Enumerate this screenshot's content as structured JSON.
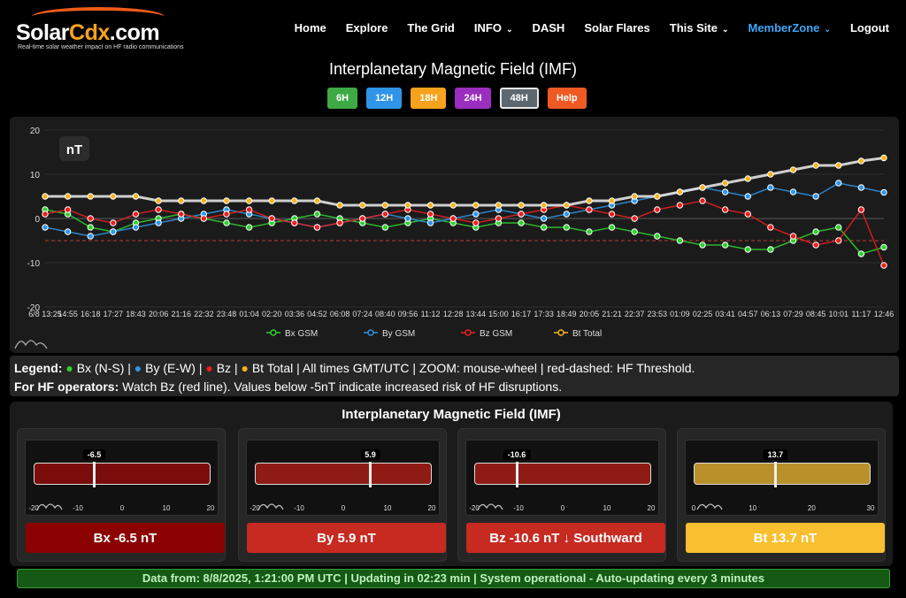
{
  "nav": {
    "logo": {
      "name_main": "Solar",
      "name_hl": "Cdx",
      "name_tail": ".com",
      "tagline": "Real-time solar weather impact on HF radio communications"
    },
    "items": [
      {
        "label": "Home",
        "dropdown": false
      },
      {
        "label": "Explore",
        "dropdown": false
      },
      {
        "label": "The Grid",
        "dropdown": false
      },
      {
        "label": "INFO",
        "dropdown": true
      },
      {
        "label": "DASH",
        "dropdown": false
      },
      {
        "label": "Solar Flares",
        "dropdown": false
      },
      {
        "label": "This Site",
        "dropdown": true
      },
      {
        "label": "MemberZone",
        "dropdown": true,
        "active": true
      },
      {
        "label": "Logout",
        "dropdown": false
      }
    ],
    "chevron": "⌄"
  },
  "page_title": "Interplanetary Magnetic Field (IMF)",
  "ranges": [
    {
      "label": "6H",
      "color": "#3daa46"
    },
    {
      "label": "12H",
      "color": "#2f95e8"
    },
    {
      "label": "18H",
      "color": "#f7a21c"
    },
    {
      "label": "24H",
      "color": "#9b2dbf"
    },
    {
      "label": "48H",
      "color": "#5c6770",
      "selected": true
    },
    {
      "label": "Help",
      "color": "#ef5a22"
    }
  ],
  "chart_data": {
    "type": "scatter",
    "unit_label": "nT",
    "ylim": [
      -20,
      20
    ],
    "yticks": [
      20,
      10,
      0,
      -10,
      -20
    ],
    "threshold": -5,
    "grid": true,
    "legend_position": "bottom",
    "x_tick_labels": [
      "6/8 13:25",
      "14:55",
      "16:18",
      "17:27",
      "18:43",
      "20:06",
      "21:16",
      "22:32",
      "23:48",
      "01:04",
      "02:20",
      "03:36",
      "04:52",
      "06:08",
      "07:24",
      "08:40",
      "09:56",
      "11:12",
      "12:28",
      "13:44",
      "15:00",
      "16:17",
      "17:33",
      "18:49",
      "20:05",
      "21:21",
      "22:37",
      "23:53",
      "01:09",
      "02:25",
      "03:41",
      "04:57",
      "06:13",
      "07:29",
      "08:45",
      "10:01",
      "11:17",
      "12:46"
    ],
    "x_labels_note": "time axis 6/8 13:25 to 12:46 (next day)",
    "series": [
      {
        "name": "Bx GSM",
        "color": "#2fd12f",
        "values": [
          2,
          1,
          -2,
          -3,
          -1,
          0,
          1,
          0,
          -1,
          -2,
          -1,
          0,
          1,
          0,
          -1,
          -2,
          -1,
          0,
          -1,
          -2,
          -1,
          -1,
          -2,
          -2,
          -3,
          -2,
          -3,
          -4,
          -5,
          -6,
          -6,
          -7,
          -7,
          -5,
          -3,
          -2,
          -8,
          -6.5
        ]
      },
      {
        "name": "By GSM",
        "color": "#2f95e8",
        "values": [
          -2,
          -3,
          -4,
          -3,
          -2,
          -1,
          0,
          1,
          2,
          1,
          0,
          -1,
          -2,
          -1,
          0,
          1,
          0,
          -1,
          0,
          1,
          2,
          1,
          0,
          1,
          2,
          3,
          4,
          5,
          6,
          7,
          6,
          5,
          7,
          6,
          5,
          8,
          7,
          5.9
        ]
      },
      {
        "name": "Bz GSM",
        "color": "#ec1f1f",
        "values": [
          1,
          2,
          0,
          -1,
          1,
          2,
          1,
          0,
          1,
          2,
          0,
          -1,
          -2,
          -1,
          0,
          1,
          2,
          1,
          0,
          -1,
          0,
          1,
          2,
          3,
          2,
          1,
          0,
          2,
          3,
          4,
          2,
          1,
          -2,
          -4,
          -6,
          -5,
          2,
          -10.6
        ]
      },
      {
        "name": "Bt Total",
        "color": "#f7b21c",
        "values": [
          5,
          5,
          5,
          5,
          5,
          4,
          4,
          4,
          4,
          4,
          4,
          4,
          4,
          3,
          3,
          3,
          3,
          3,
          3,
          3,
          3,
          3,
          3,
          3,
          4,
          4,
          5,
          5,
          6,
          7,
          8,
          9,
          10,
          11,
          12,
          12,
          13,
          13.7
        ]
      }
    ]
  },
  "legend_text": {
    "legend_label": "Legend:",
    "bx": "Bx (N-S)",
    "by": "By (E-W)",
    "bz": "Bz",
    "bt": "Bt Total",
    "sep": "|",
    "tail": "All times GMT/UTC | ZOOM: mouse-wheel | red-dashed: HF Threshold.",
    "hf_label": "For HF operators:",
    "hf_text": "Watch Bz (red line). Values below -5nT indicate increased risk of HF disruptions."
  },
  "gauges": {
    "title": "Interplanetary Magnetic Field (IMF)",
    "cards": [
      {
        "id": "bx",
        "value": -6.5,
        "value_label": "-6.5",
        "min": -20,
        "max": 20,
        "ticks": [
          "-20",
          "-10",
          "0",
          "10",
          "20"
        ],
        "bar_color": "#7a0c0c",
        "button_label": "Bx -6.5 nT",
        "button_color": "#8b0000"
      },
      {
        "id": "by",
        "value": 5.9,
        "value_label": "5.9",
        "min": -20,
        "max": 20,
        "ticks": [
          "-20",
          "-10",
          "0",
          "10",
          "20"
        ],
        "bar_color": "#8e1c14",
        "button_label": "By 5.9 nT",
        "button_color": "#c62a20"
      },
      {
        "id": "bz",
        "value": -10.6,
        "value_label": "-10.6",
        "min": -20,
        "max": 20,
        "ticks": [
          "-20",
          "-10",
          "0",
          "10",
          "20"
        ],
        "bar_color": "#8e1c14",
        "button_label": "Bz -10.6 nT ↓ Southward",
        "button_color": "#c62a20"
      },
      {
        "id": "bt",
        "value": 13.7,
        "value_label": "13.7",
        "min": 0,
        "max": 30,
        "ticks": [
          "0",
          "10",
          "20",
          "30"
        ],
        "bar_color": "#b8902a",
        "button_label": "Bt 13.7 nT",
        "button_color": "#f8c030"
      }
    ]
  },
  "status_text": "Data from: 8/8/2025, 1:21:00 PM UTC | Updating in 02:23 min | System operational - Auto-updating every 3 minutes"
}
